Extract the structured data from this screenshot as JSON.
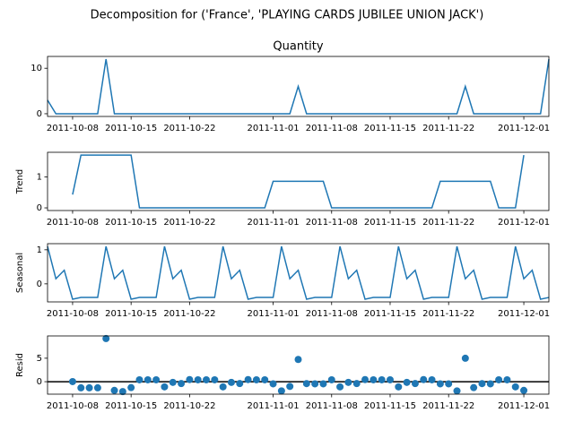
{
  "title": "Decomposition for ('France', 'PLAYING CARDS JUBILEE UNION JACK')",
  "chart_data": [
    {
      "type": "line",
      "title": "Quantity",
      "color": "#1f77b4",
      "x": [
        "2011-10-05",
        "2011-10-06",
        "2011-10-07",
        "2011-10-08",
        "2011-10-09",
        "2011-10-10",
        "2011-10-11",
        "2011-10-12",
        "2011-10-13",
        "2011-10-14",
        "2011-10-15",
        "2011-10-16",
        "2011-10-17",
        "2011-10-18",
        "2011-10-19",
        "2011-10-20",
        "2011-10-21",
        "2011-10-22",
        "2011-10-23",
        "2011-10-24",
        "2011-10-25",
        "2011-10-26",
        "2011-10-27",
        "2011-10-28",
        "2011-10-29",
        "2011-10-30",
        "2011-10-31",
        "2011-11-01",
        "2011-11-02",
        "2011-11-03",
        "2011-11-04",
        "2011-11-05",
        "2011-11-06",
        "2011-11-07",
        "2011-11-08",
        "2011-11-09",
        "2011-11-10",
        "2011-11-11",
        "2011-11-12",
        "2011-11-13",
        "2011-11-14",
        "2011-11-15",
        "2011-11-16",
        "2011-11-17",
        "2011-11-18",
        "2011-11-19",
        "2011-11-20",
        "2011-11-21",
        "2011-11-22",
        "2011-11-23",
        "2011-11-24",
        "2011-11-25",
        "2011-11-26",
        "2011-11-27",
        "2011-11-28",
        "2011-11-29",
        "2011-11-30",
        "2011-12-01",
        "2011-12-02",
        "2011-12-03",
        "2011-12-04"
      ],
      "values": [
        3,
        0,
        0,
        0,
        0,
        0,
        0,
        12,
        0,
        0,
        0,
        0,
        0,
        0,
        0,
        0,
        0,
        0,
        0,
        0,
        0,
        0,
        0,
        0,
        0,
        0,
        0,
        0,
        0,
        0,
        6,
        0,
        0,
        0,
        0,
        0,
        0,
        0,
        0,
        0,
        0,
        0,
        0,
        0,
        0,
        0,
        0,
        0,
        0,
        0,
        6,
        0,
        0,
        0,
        0,
        0,
        0,
        0,
        0,
        0,
        12
      ],
      "xlim": [
        "2011-10-05",
        "2011-12-04"
      ],
      "xticks": [
        "2011-10-08",
        "2011-10-15",
        "2011-10-22",
        "2011-11-01",
        "2011-11-08",
        "2011-11-15",
        "2011-11-22",
        "2011-12-01"
      ],
      "ylim": [
        -0.6,
        12.6
      ],
      "yticks": [
        0,
        10
      ]
    },
    {
      "type": "line",
      "y_label": "Trend",
      "color": "#1f77b4",
      "x": [
        "2011-10-05",
        "2011-10-06",
        "2011-10-07",
        "2011-10-08",
        "2011-10-09",
        "2011-10-10",
        "2011-10-11",
        "2011-10-12",
        "2011-10-13",
        "2011-10-14",
        "2011-10-15",
        "2011-10-16",
        "2011-10-17",
        "2011-10-18",
        "2011-10-19",
        "2011-10-20",
        "2011-10-21",
        "2011-10-22",
        "2011-10-23",
        "2011-10-24",
        "2011-10-25",
        "2011-10-26",
        "2011-10-27",
        "2011-10-28",
        "2011-10-29",
        "2011-10-30",
        "2011-10-31",
        "2011-11-01",
        "2011-11-02",
        "2011-11-03",
        "2011-11-04",
        "2011-11-05",
        "2011-11-06",
        "2011-11-07",
        "2011-11-08",
        "2011-11-09",
        "2011-11-10",
        "2011-11-11",
        "2011-11-12",
        "2011-11-13",
        "2011-11-14",
        "2011-11-15",
        "2011-11-16",
        "2011-11-17",
        "2011-11-18",
        "2011-11-19",
        "2011-11-20",
        "2011-11-21",
        "2011-11-22",
        "2011-11-23",
        "2011-11-24",
        "2011-11-25",
        "2011-11-26",
        "2011-11-27",
        "2011-11-28",
        "2011-11-29",
        "2011-11-30",
        "2011-12-01",
        "2011-12-02",
        "2011-12-03",
        "2011-12-04"
      ],
      "values": [
        null,
        null,
        null,
        0.43,
        1.71,
        1.71,
        1.71,
        1.71,
        1.71,
        1.71,
        1.71,
        0,
        0,
        0,
        0,
        0,
        0,
        0,
        0,
        0,
        0,
        0,
        0,
        0,
        0,
        0,
        0,
        0.86,
        0.86,
        0.86,
        0.86,
        0.86,
        0.86,
        0.86,
        0,
        0,
        0,
        0,
        0,
        0,
        0,
        0,
        0,
        0,
        0,
        0,
        0,
        0.86,
        0.86,
        0.86,
        0.86,
        0.86,
        0.86,
        0.86,
        0,
        0,
        0,
        1.71,
        null,
        null,
        null
      ],
      "xlim": [
        "2011-10-05",
        "2011-12-04"
      ],
      "xticks": [
        "2011-10-08",
        "2011-10-15",
        "2011-10-22",
        "2011-11-01",
        "2011-11-08",
        "2011-11-15",
        "2011-11-22",
        "2011-12-01"
      ],
      "ylim": [
        -0.086,
        1.8
      ],
      "yticks": [
        0,
        1
      ]
    },
    {
      "type": "line",
      "y_label": "Seasonal",
      "color": "#1f77b4",
      "x": [
        "2011-10-05",
        "2011-10-06",
        "2011-10-07",
        "2011-10-08",
        "2011-10-09",
        "2011-10-10",
        "2011-10-11",
        "2011-10-12",
        "2011-10-13",
        "2011-10-14",
        "2011-10-15",
        "2011-10-16",
        "2011-10-17",
        "2011-10-18",
        "2011-10-19",
        "2011-10-20",
        "2011-10-21",
        "2011-10-22",
        "2011-10-23",
        "2011-10-24",
        "2011-10-25",
        "2011-10-26",
        "2011-10-27",
        "2011-10-28",
        "2011-10-29",
        "2011-10-30",
        "2011-10-31",
        "2011-11-01",
        "2011-11-02",
        "2011-11-03",
        "2011-11-04",
        "2011-11-05",
        "2011-11-06",
        "2011-11-07",
        "2011-11-08",
        "2011-11-09",
        "2011-11-10",
        "2011-11-11",
        "2011-11-12",
        "2011-11-13",
        "2011-11-14",
        "2011-11-15",
        "2011-11-16",
        "2011-11-17",
        "2011-11-18",
        "2011-11-19",
        "2011-11-20",
        "2011-11-21",
        "2011-11-22",
        "2011-11-23",
        "2011-11-24",
        "2011-11-25",
        "2011-11-26",
        "2011-11-27",
        "2011-11-28",
        "2011-11-29",
        "2011-11-30",
        "2011-12-01",
        "2011-12-02",
        "2011-12-03",
        "2011-12-04"
      ],
      "values": [
        1.1,
        0.15,
        0.4,
        -0.45,
        -0.4,
        -0.4,
        -0.4,
        1.1,
        0.15,
        0.4,
        -0.45,
        -0.4,
        -0.4,
        -0.4,
        1.1,
        0.15,
        0.4,
        -0.45,
        -0.4,
        -0.4,
        -0.4,
        1.1,
        0.15,
        0.4,
        -0.45,
        -0.4,
        -0.4,
        -0.4,
        1.1,
        0.15,
        0.4,
        -0.45,
        -0.4,
        -0.4,
        -0.4,
        1.1,
        0.15,
        0.4,
        -0.45,
        -0.4,
        -0.4,
        -0.4,
        1.1,
        0.15,
        0.4,
        -0.45,
        -0.4,
        -0.4,
        -0.4,
        1.1,
        0.15,
        0.4,
        -0.45,
        -0.4,
        -0.4,
        -0.4,
        1.1,
        0.15,
        0.4,
        -0.45,
        -0.4
      ],
      "xlim": [
        "2011-10-05",
        "2011-12-04"
      ],
      "xticks": [
        "2011-10-08",
        "2011-10-15",
        "2011-10-22",
        "2011-11-01",
        "2011-11-08",
        "2011-11-15",
        "2011-11-22",
        "2011-12-01"
      ],
      "ylim": [
        -0.53,
        1.18
      ],
      "yticks": [
        0,
        1
      ]
    },
    {
      "type": "scatter",
      "y_label": "Resid",
      "color": "#1f77b4",
      "zero_line": true,
      "x": [
        "2011-10-05",
        "2011-10-06",
        "2011-10-07",
        "2011-10-08",
        "2011-10-09",
        "2011-10-10",
        "2011-10-11",
        "2011-10-12",
        "2011-10-13",
        "2011-10-14",
        "2011-10-15",
        "2011-10-16",
        "2011-10-17",
        "2011-10-18",
        "2011-10-19",
        "2011-10-20",
        "2011-10-21",
        "2011-10-22",
        "2011-10-23",
        "2011-10-24",
        "2011-10-25",
        "2011-10-26",
        "2011-10-27",
        "2011-10-28",
        "2011-10-29",
        "2011-10-30",
        "2011-10-31",
        "2011-11-01",
        "2011-11-02",
        "2011-11-03",
        "2011-11-04",
        "2011-11-05",
        "2011-11-06",
        "2011-11-07",
        "2011-11-08",
        "2011-11-09",
        "2011-11-10",
        "2011-11-11",
        "2011-11-12",
        "2011-11-13",
        "2011-11-14",
        "2011-11-15",
        "2011-11-16",
        "2011-11-17",
        "2011-11-18",
        "2011-11-19",
        "2011-11-20",
        "2011-11-21",
        "2011-11-22",
        "2011-11-23",
        "2011-11-24",
        "2011-11-25",
        "2011-11-26",
        "2011-11-27",
        "2011-11-28",
        "2011-11-29",
        "2011-11-30",
        "2011-12-01",
        "2011-12-02",
        "2011-12-03",
        "2011-12-04"
      ],
      "values": [
        null,
        null,
        null,
        0.02,
        -1.31,
        -1.31,
        -1.31,
        9.19,
        -1.86,
        -2.11,
        -1.26,
        0.4,
        0.4,
        0.4,
        -1.1,
        -0.15,
        -0.4,
        0.45,
        0.4,
        0.4,
        0.4,
        -1.1,
        -0.15,
        -0.4,
        0.45,
        0.4,
        0.4,
        -0.46,
        -1.96,
        -1.01,
        4.74,
        -0.41,
        -0.46,
        -0.46,
        0.4,
        -1.1,
        -0.15,
        -0.4,
        0.45,
        0.4,
        0.4,
        0.4,
        -1.1,
        -0.15,
        -0.4,
        0.45,
        0.4,
        -0.46,
        -0.46,
        -1.96,
        4.99,
        -1.26,
        -0.41,
        -0.46,
        0.4,
        0.4,
        -1.1,
        -1.86,
        null,
        null,
        null
      ],
      "xlim": [
        "2011-10-05",
        "2011-12-04"
      ],
      "xticks": [
        "2011-10-08",
        "2011-10-15",
        "2011-10-22",
        "2011-11-01",
        "2011-11-08",
        "2011-11-15",
        "2011-11-22",
        "2011-12-01"
      ],
      "ylim": [
        -2.66,
        9.75
      ],
      "yticks": [
        0,
        5
      ]
    }
  ]
}
